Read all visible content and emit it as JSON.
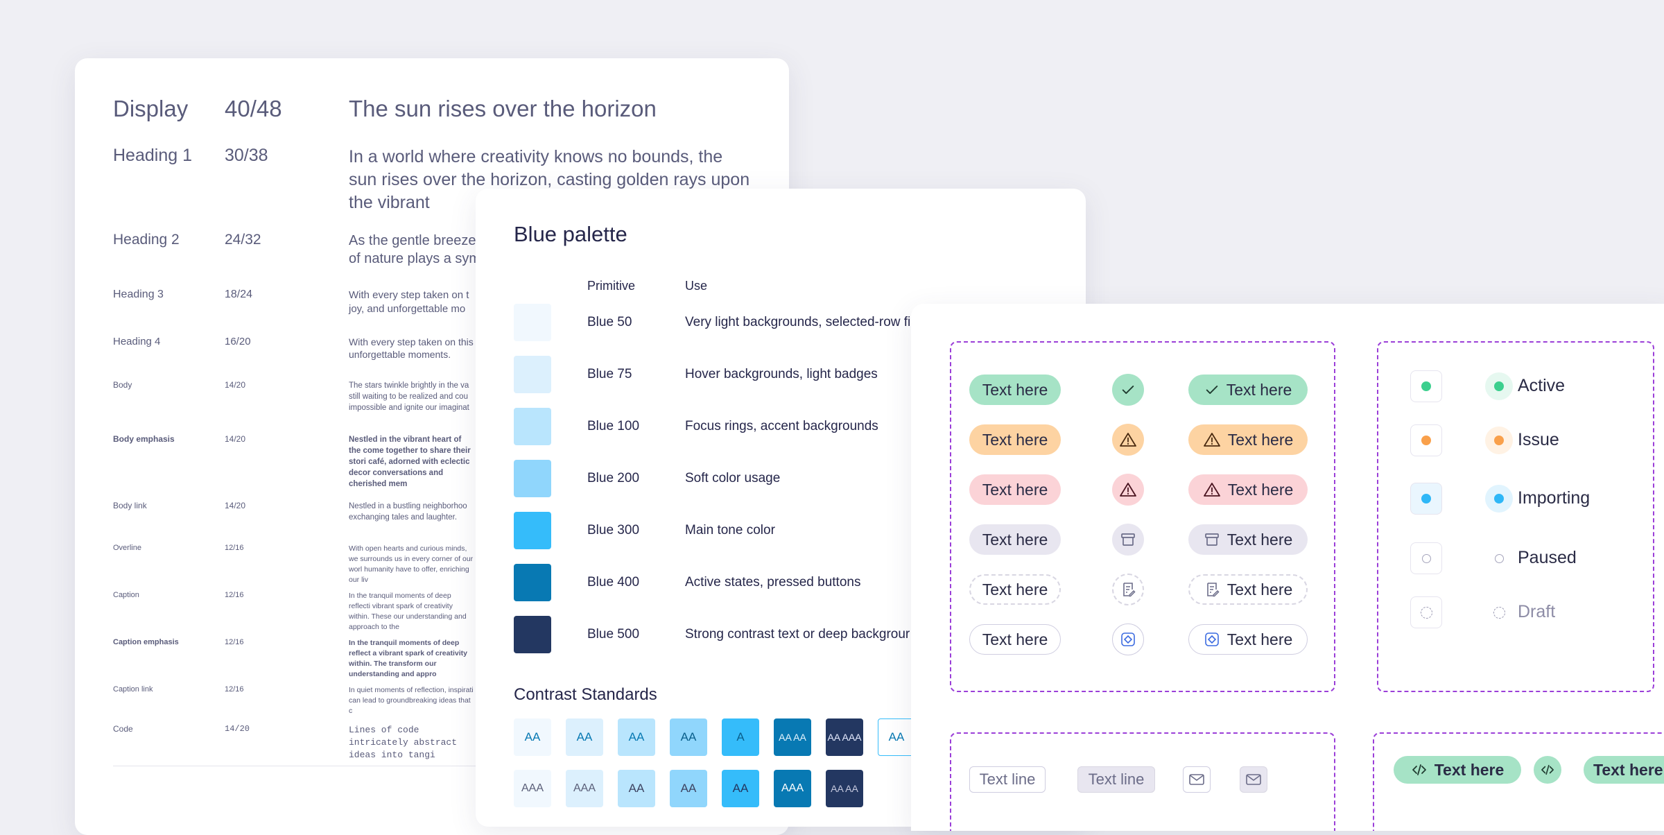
{
  "typography": {
    "rows": [
      {
        "name": "Display",
        "size": "40/48",
        "sample": "The sun rises over the horizon"
      },
      {
        "name": "Heading 1",
        "size": "30/38",
        "sample": "In a world where creativity knows no bounds, the sun rises over the horizon, casting golden rays upon the vibrant"
      },
      {
        "name": "Heading 2",
        "size": "24/32",
        "sample": "As the gentle breeze of nature plays a sym"
      },
      {
        "name": "Heading 3",
        "size": "18/24",
        "sample": "With every step taken on t joy, and unforgettable mo"
      },
      {
        "name": "Heading 4",
        "size": "16/20",
        "sample": "With every step taken on this unforgettable moments."
      },
      {
        "name": "Body",
        "size": "14/20",
        "sample": "The stars twinkle brightly in the va still waiting to be realized and cou impossible and ignite our imaginat"
      },
      {
        "name": "Body emphasis",
        "size": "14/20",
        "sample": "Nestled in the vibrant heart of the come together to share their stori café, adorned with eclectic decor conversations and cherished mem"
      },
      {
        "name": "Body link",
        "size": "14/20",
        "sample": "Nestled in a bustling neighborhoo exchanging tales and laughter."
      },
      {
        "name": "Overline",
        "size": "12/16",
        "sample": "With open hearts and curious minds, we surrounds us in every corner of our worl humanity have to offer, enriching our liv"
      },
      {
        "name": "Caption",
        "size": "12/16",
        "sample": "In the tranquil moments of deep reflecti vibrant spark of creativity within. These our understanding and approach to the"
      },
      {
        "name": "Caption emphasis",
        "size": "12/16",
        "sample": "In the tranquil moments of deep reflect a vibrant spark of creativity within. The transform our understanding and appro"
      },
      {
        "name": "Caption link",
        "size": "12/16",
        "sample": "In quiet moments of reflection, inspirati can lead to groundbreaking ideas that c"
      },
      {
        "name": "Code",
        "size": "14/20",
        "sample": "Lines of code intricately abstract ideas into tangi"
      }
    ]
  },
  "palette": {
    "title": "Blue palette",
    "col_primitive": "Primitive",
    "col_use": "Use",
    "rows": [
      {
        "name": "Blue 50",
        "use": "Very light backgrounds, selected-row fi",
        "color": "#f1f8fe"
      },
      {
        "name": "Blue 75",
        "use": "Hover backgrounds, light badges",
        "color": "#dcf0fd"
      },
      {
        "name": "Blue 100",
        "use": "Focus rings, accent backgrounds",
        "color": "#b9e5fd"
      },
      {
        "name": "Blue 200",
        "use": "Soft color usage",
        "color": "#90d6fc"
      },
      {
        "name": "Blue 300",
        "use": "Main tone color",
        "color": "#35bcfa"
      },
      {
        "name": "Blue 400",
        "use": "Active states, pressed buttons",
        "color": "#0879b3"
      },
      {
        "name": "Blue 500",
        "use": "Strong contrast text or deep backgrour",
        "color": "#233761"
      }
    ],
    "contrast_title": "Contrast Standards",
    "contrast_row1": [
      "AA",
      "AA",
      "AA",
      "AA",
      "A",
      "AA AA",
      "AA AAA",
      "AA"
    ],
    "contrast_row2": [
      "AAA",
      "AAA",
      "AA",
      "AA",
      "AA",
      "AAA",
      "AA AA"
    ]
  },
  "badges": {
    "label": "Text here",
    "rows": [
      {
        "variant": "green",
        "icon": "check-icon"
      },
      {
        "variant": "orange",
        "icon": "warning-icon"
      },
      {
        "variant": "red",
        "icon": "warning-icon"
      },
      {
        "variant": "grey",
        "icon": "archive-icon"
      },
      {
        "variant": "dashed",
        "icon": "draft-doc-icon"
      },
      {
        "variant": "outline",
        "icon": "diamond-icon"
      }
    ]
  },
  "statuses": [
    {
      "label": "Active",
      "color": "#3ccf8e"
    },
    {
      "label": "Issue",
      "color": "#f9a04b"
    },
    {
      "label": "Importing",
      "color": "#2fb7f7"
    },
    {
      "label": "Paused",
      "color": "#ffffff"
    },
    {
      "label": "Draft",
      "color": "#ffffff"
    }
  ],
  "bottom": {
    "text_line": "Text line",
    "code_label": "Text here"
  }
}
